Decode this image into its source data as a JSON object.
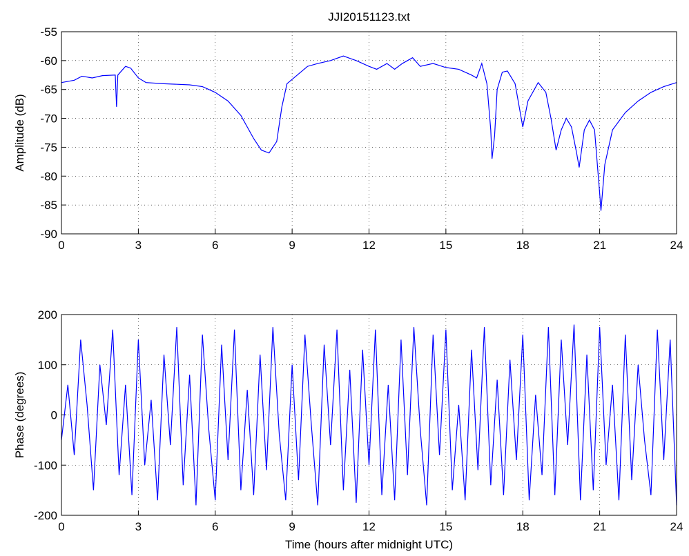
{
  "chart_data": [
    {
      "type": "line",
      "title": "JJI20151123.txt",
      "ylabel": "Amplitude (dB)",
      "color": "#0000ff",
      "grid": true,
      "x": [
        0,
        0.5,
        0.8,
        1.2,
        1.6,
        2.1,
        2.15,
        2.2,
        2.5,
        2.7,
        3,
        3.3,
        4,
        5,
        5.5,
        6,
        6.5,
        7,
        7.5,
        7.8,
        8.1,
        8.4,
        8.6,
        8.8,
        9.2,
        9.6,
        10,
        10.5,
        11,
        11.5,
        12,
        12.3,
        12.7,
        13,
        13.3,
        13.7,
        14,
        14.5,
        15,
        15.5,
        16,
        16.2,
        16.4,
        16.6,
        16.75,
        16.8,
        16.9,
        17,
        17.2,
        17.4,
        17.7,
        17.9,
        18,
        18.2,
        18.6,
        18.9,
        19.1,
        19.3,
        19.5,
        19.7,
        19.9,
        20.1,
        20.2,
        20.4,
        20.6,
        20.8,
        21,
        21.05,
        21.2,
        21.5,
        22,
        22.5,
        23,
        23.5,
        24
      ],
      "values": [
        -63.8,
        -63.4,
        -62.7,
        -63.0,
        -62.6,
        -62.5,
        -68,
        -62.5,
        -61.0,
        -61.3,
        -63.0,
        -63.8,
        -64,
        -64.2,
        -64.5,
        -65.5,
        -67,
        -69.5,
        -73.5,
        -75.5,
        -76,
        -74,
        -68,
        -64,
        -62.5,
        -61,
        -60.5,
        -60,
        -59.2,
        -60,
        -61,
        -61.5,
        -60.5,
        -61.5,
        -60.5,
        -59.5,
        -61,
        -60.5,
        -61.2,
        -61.5,
        -62.5,
        -63,
        -60.5,
        -64,
        -72,
        -77,
        -73,
        -65,
        -62,
        -61.8,
        -64,
        -69,
        -71.5,
        -67,
        -63.8,
        -65.5,
        -70,
        -75.5,
        -72,
        -70,
        -71.5,
        -76,
        -78.5,
        -72,
        -70.3,
        -72,
        -83,
        -86,
        -78,
        -72,
        -69,
        -67,
        -65.5,
        -64.5,
        -63.8
      ],
      "xlim": [
        0,
        24
      ],
      "xticks": [
        0,
        3,
        6,
        9,
        12,
        15,
        18,
        21,
        24
      ],
      "ylim": [
        -90,
        -55
      ],
      "yticks": [
        -55,
        -60,
        -65,
        -70,
        -75,
        -80,
        -85,
        -90
      ]
    },
    {
      "type": "line",
      "ylabel": "Phase (degrees)",
      "xlabel": "Time (hours after midnight UTC)",
      "color": "#0000ff",
      "grid": true,
      "x": [
        0,
        0.25,
        0.5,
        0.75,
        1,
        1.25,
        1.5,
        1.75,
        2,
        2.25,
        2.5,
        2.75,
        3,
        3.25,
        3.5,
        3.75,
        4,
        4.25,
        4.5,
        4.75,
        5,
        5.25,
        5.5,
        5.75,
        6,
        6.25,
        6.5,
        6.75,
        7,
        7.25,
        7.5,
        7.75,
        8,
        8.25,
        8.5,
        8.75,
        9,
        9.25,
        9.5,
        9.75,
        10,
        10.25,
        10.5,
        10.75,
        11,
        11.25,
        11.5,
        11.75,
        12,
        12.25,
        12.5,
        12.75,
        13,
        13.25,
        13.5,
        13.75,
        14,
        14.25,
        14.5,
        14.75,
        15,
        15.25,
        15.5,
        15.75,
        16,
        16.25,
        16.5,
        16.75,
        17,
        17.25,
        17.5,
        17.75,
        18,
        18.25,
        18.5,
        18.75,
        19,
        19.25,
        19.5,
        19.75,
        20,
        20.25,
        20.5,
        20.75,
        21,
        21.25,
        21.5,
        21.75,
        22,
        22.25,
        22.5,
        22.75,
        23,
        23.25,
        23.5,
        23.75,
        24
      ],
      "values": [
        -50,
        60,
        -80,
        150,
        20,
        -150,
        100,
        -20,
        170,
        -120,
        60,
        -160,
        150,
        -100,
        30,
        -170,
        120,
        -60,
        175,
        -140,
        80,
        -180,
        160,
        -30,
        -170,
        140,
        -90,
        170,
        -150,
        50,
        -160,
        120,
        -110,
        175,
        -40,
        -170,
        100,
        -130,
        160,
        -20,
        -180,
        140,
        -60,
        170,
        -150,
        90,
        -175,
        130,
        -100,
        170,
        -160,
        60,
        -170,
        150,
        -120,
        175,
        -30,
        -180,
        160,
        -80,
        170,
        -150,
        20,
        -170,
        130,
        -110,
        175,
        -140,
        70,
        -160,
        110,
        -90,
        160,
        -170,
        40,
        -120,
        175,
        -160,
        150,
        -60,
        180,
        -170,
        120,
        -150,
        175,
        -100,
        60,
        -170,
        160,
        -130,
        100,
        -50,
        -160,
        170,
        -90,
        150,
        -180
      ],
      "xlim": [
        0,
        24
      ],
      "xticks": [
        0,
        3,
        6,
        9,
        12,
        15,
        18,
        21,
        24
      ],
      "ylim": [
        -200,
        200
      ],
      "yticks": [
        -200,
        -100,
        0,
        100,
        200
      ]
    }
  ]
}
